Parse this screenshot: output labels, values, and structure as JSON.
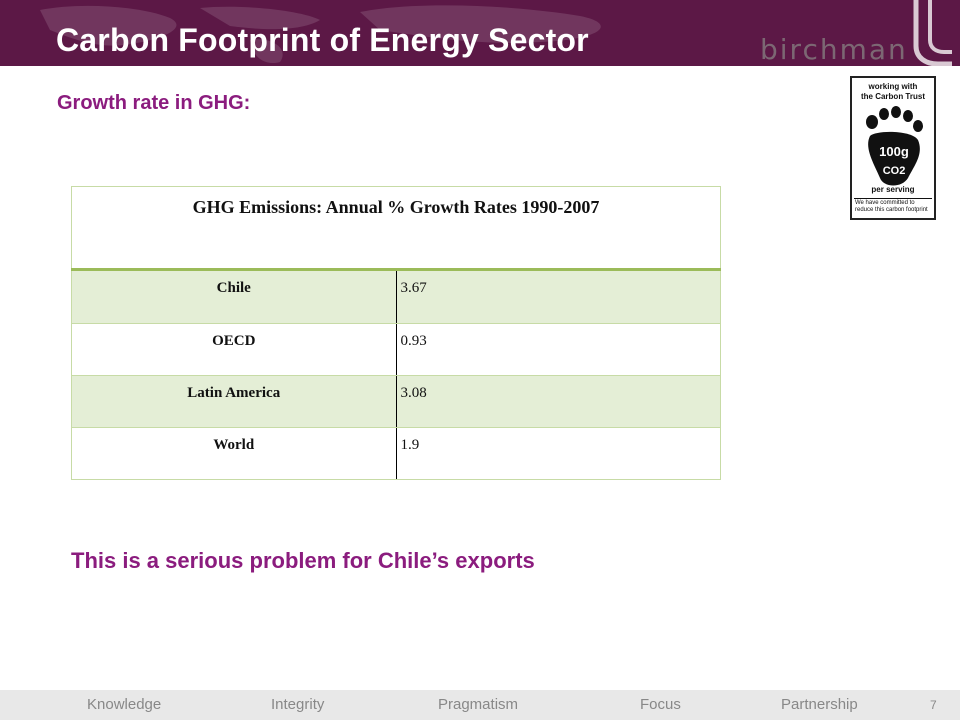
{
  "slide": {
    "title": "Carbon Footprint of Energy Sector",
    "subtitle": "Growth rate in GHG:",
    "brand": "birchman",
    "page_number": "7",
    "note": "This is a serious problem for Chile’s exports"
  },
  "badge": {
    "line1": "working with",
    "line2": "the Carbon Trust",
    "amount": "100g",
    "gas": "CO2",
    "per": "per serving",
    "commit1": "We have committed to",
    "commit2": "reduce this carbon footprint"
  },
  "table": {
    "caption": "GHG Emissions:  Annual % Growth Rates  1990-2007",
    "rows": [
      {
        "region": "Chile",
        "value": "3.67"
      },
      {
        "region": "OECD",
        "value": "0.93"
      },
      {
        "region": "Latin America",
        "value": "3.08"
      },
      {
        "region": "World",
        "value": "1.9"
      }
    ]
  },
  "footer": {
    "items": [
      "Knowledge",
      "Integrity",
      "Pragmatism",
      "Focus",
      "Partnership"
    ]
  },
  "colors": {
    "header_bg": "#5c1846",
    "accent_text": "#8b1c7e",
    "table_alt_row": "#e4eed6",
    "table_rule": "#9bbb59"
  }
}
